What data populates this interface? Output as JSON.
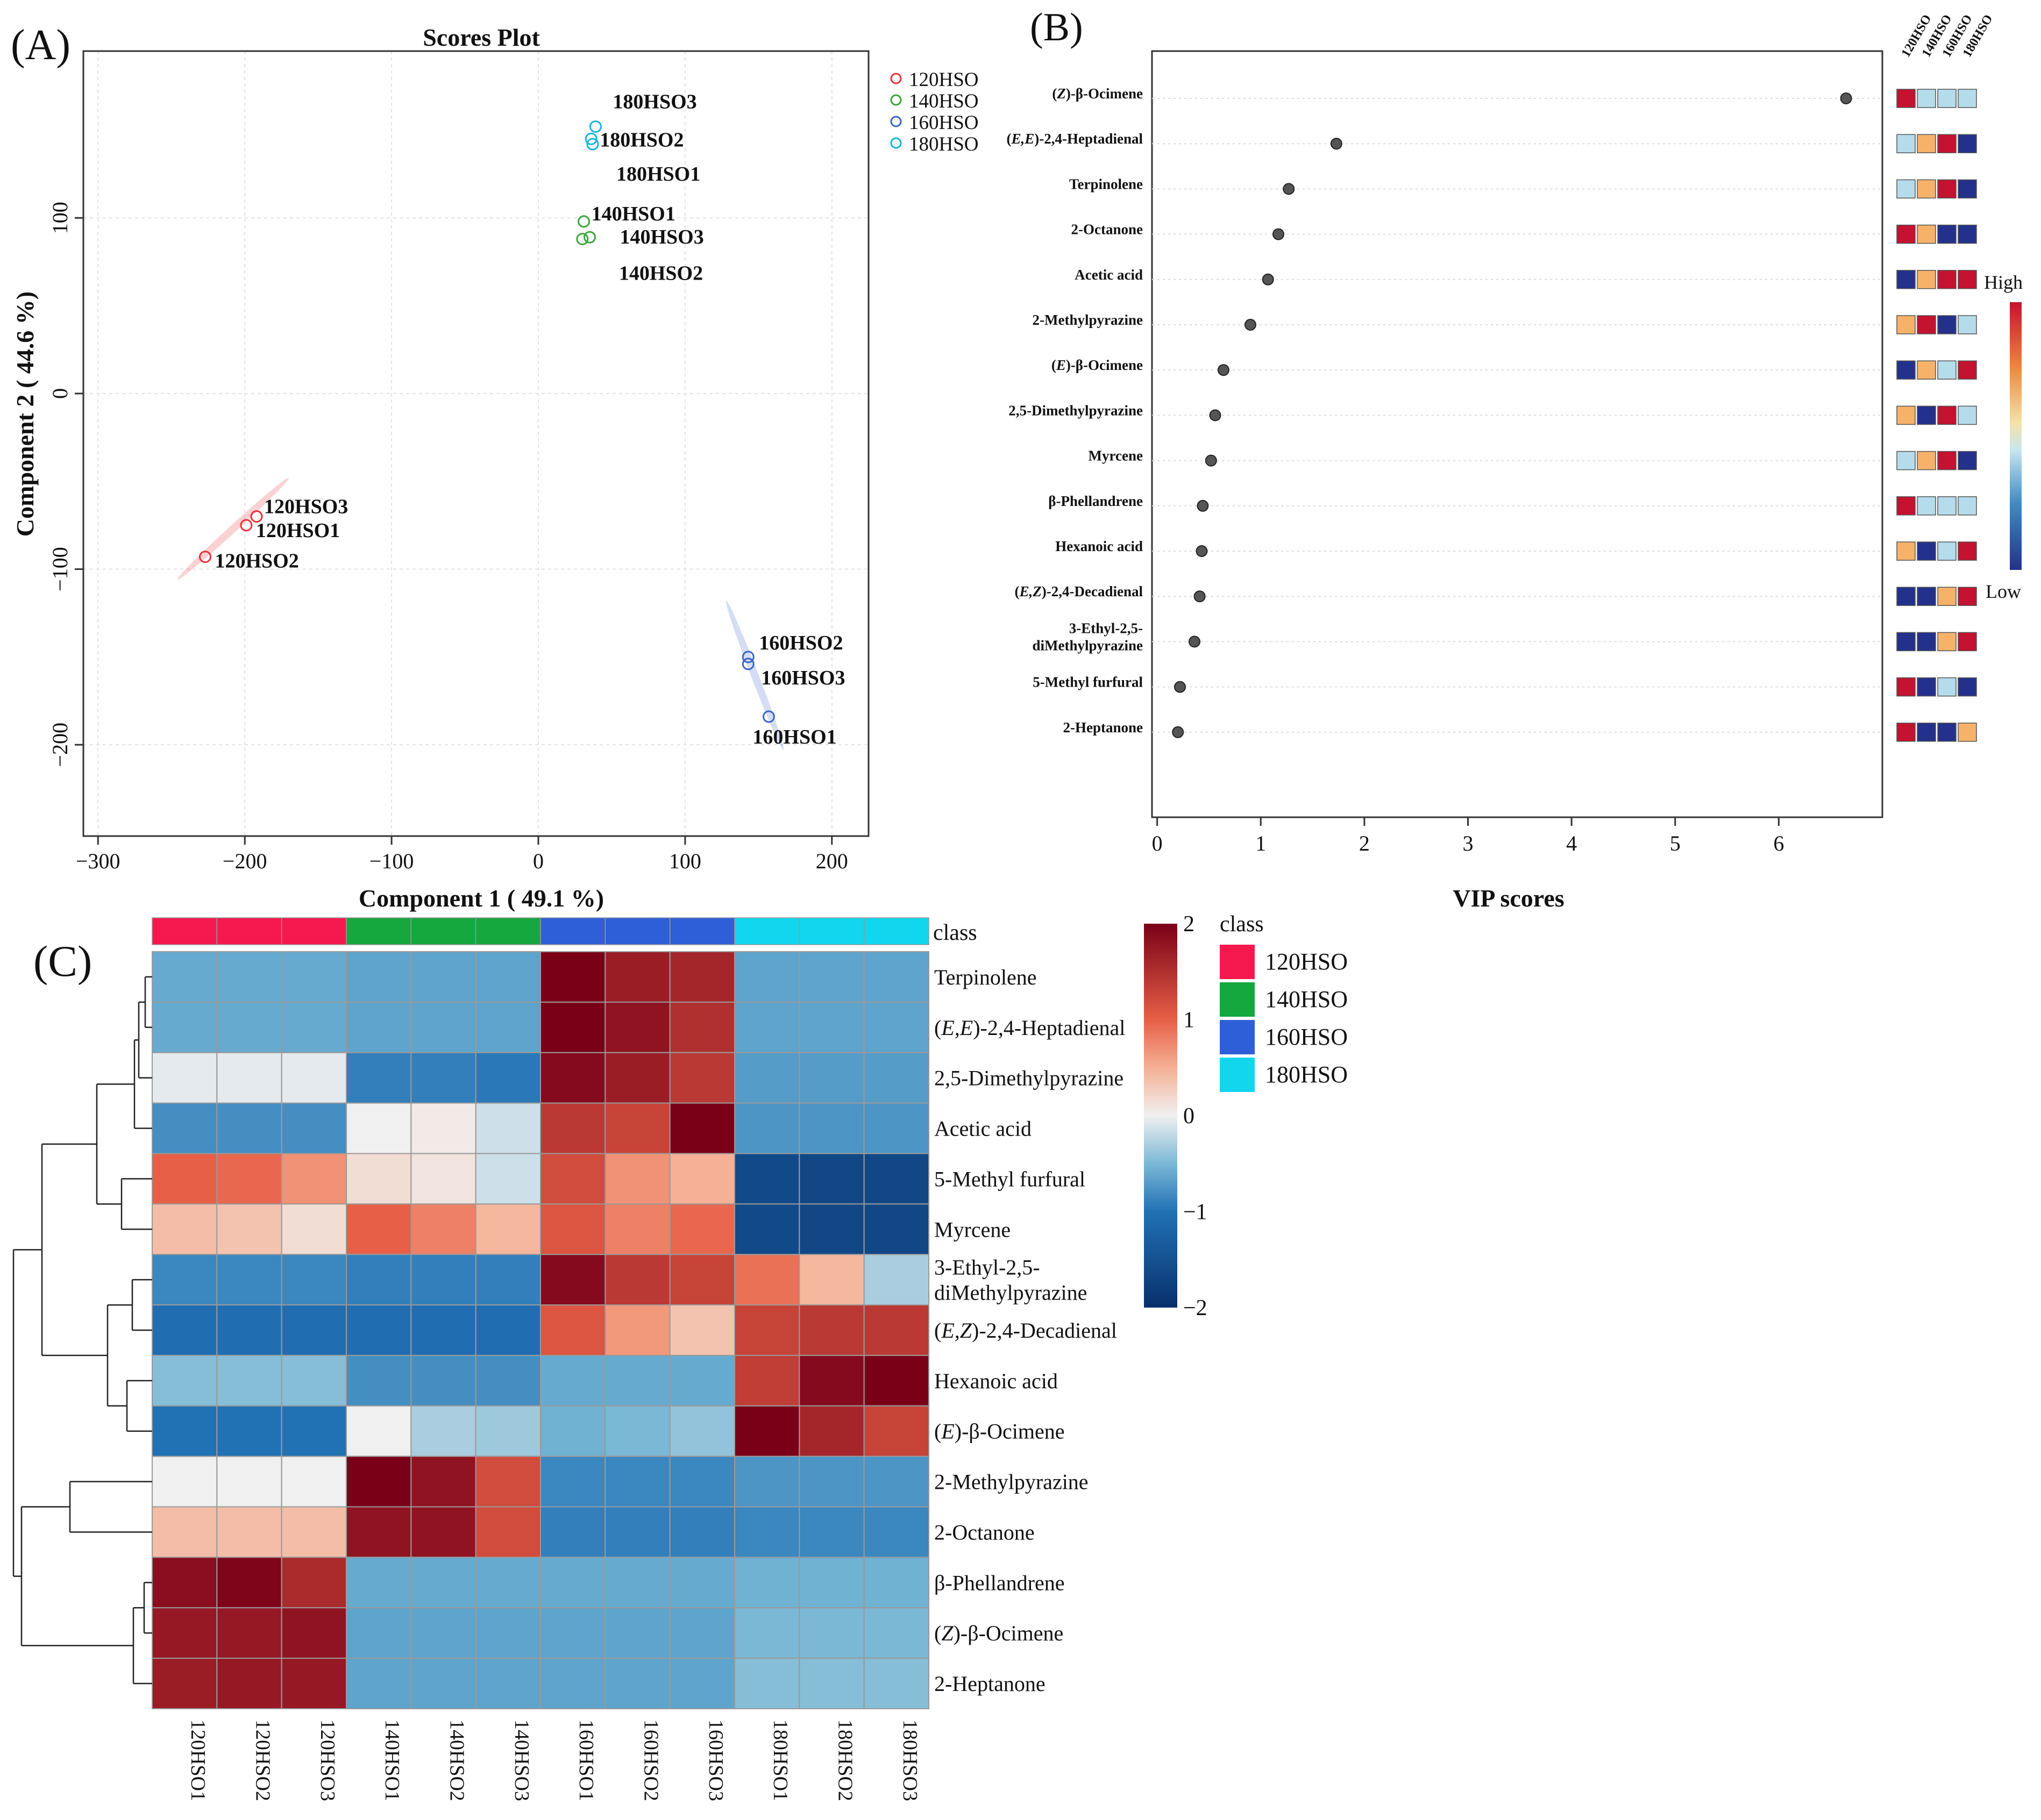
{
  "chart_data": [
    {
      "panel_label": "(A)",
      "type": "scatter",
      "title": "Scores Plot",
      "xlabel": "Component 1 ( 49.1 %)",
      "ylabel": "Component 2 ( 44.6 %)",
      "xlim": [
        -310,
        225
      ],
      "ylim": [
        -252,
        195
      ],
      "xticks": [
        -300,
        -200,
        -100,
        0,
        100,
        200
      ],
      "yticks": [
        100,
        0,
        -100,
        -200
      ],
      "tick_labels": {
        "x": [
          "−300",
          "−200",
          "−100",
          "0",
          "100",
          "200"
        ],
        "y": [
          "100",
          "0",
          "−100",
          "−200"
        ]
      },
      "grid": true,
      "legend": [
        {
          "label": "120HSO",
          "color": "#e8323c"
        },
        {
          "label": "140HSO",
          "color": "#3aa53a"
        },
        {
          "label": "160HSO",
          "color": "#3b64c8"
        },
        {
          "label": "180HSO",
          "color": "#17b4d8"
        }
      ],
      "series": [
        {
          "name": "120HSO",
          "color": "#e8323c",
          "points": [
            {
              "label": "120HSO1",
              "x": -199,
              "y": -75
            },
            {
              "label": "120HSO2",
              "x": -227,
              "y": -93
            },
            {
              "label": "120HSO3",
              "x": -192,
              "y": -70
            }
          ]
        },
        {
          "name": "140HSO",
          "color": "#3aa53a",
          "points": [
            {
              "label": "140HSO1",
              "x": 31,
              "y": 98
            },
            {
              "label": "140HSO2",
              "x": 30,
              "y": 88
            },
            {
              "label": "140HSO3",
              "x": 35,
              "y": 89
            }
          ]
        },
        {
          "name": "160HSO",
          "color": "#3b64c8",
          "points": [
            {
              "label": "160HSO1",
              "x": 157,
              "y": -184
            },
            {
              "label": "160HSO2",
              "x": 143,
              "y": -150
            },
            {
              "label": "160HSO3",
              "x": 143,
              "y": -154
            }
          ]
        },
        {
          "name": "180HSO",
          "color": "#17b4d8",
          "points": [
            {
              "label": "180HSO1",
              "x": 37,
              "y": 142
            },
            {
              "label": "180HSO2",
              "x": 36,
              "y": 145
            },
            {
              "label": "180HSO3",
              "x": 39,
              "y": 152
            }
          ]
        }
      ],
      "ellipses": [
        {
          "group": "120HSO",
          "color": "#e8323c",
          "x1": -246,
          "y1": -106,
          "x2": -170,
          "y2": -48
        },
        {
          "group": "160HSO",
          "color": "#3b64c8",
          "x1": 128,
          "y1": -118,
          "x2": 167,
          "y2": -203
        }
      ]
    },
    {
      "panel_label": "(B)",
      "type": "dot",
      "xlabel": "VIP scores",
      "xlim": [
        -0.05,
        7
      ],
      "xticks": [
        0,
        1,
        2,
        3,
        4,
        5,
        6
      ],
      "compound_labels": [
        {
          "segments": [
            {
              "t": "("
            },
            {
              "t": "Z",
              "i": true
            },
            {
              "t": ")-β-Ocimene"
            }
          ]
        },
        {
          "segments": [
            {
              "t": "("
            },
            {
              "t": "E,E",
              "i": true
            },
            {
              "t": ")-2,4-Heptadienal"
            }
          ]
        },
        {
          "segments": [
            {
              "t": "Terpinolene"
            }
          ]
        },
        {
          "segments": [
            {
              "t": "2-Octanone"
            }
          ]
        },
        {
          "segments": [
            {
              "t": "Acetic acid"
            }
          ]
        },
        {
          "segments": [
            {
              "t": "2-Methylpyrazine"
            }
          ]
        },
        {
          "segments": [
            {
              "t": "("
            },
            {
              "t": "E",
              "i": true
            },
            {
              "t": ")-β-Ocimene"
            }
          ]
        },
        {
          "segments": [
            {
              "t": "2,5-Dimethylpyrazine"
            }
          ]
        },
        {
          "segments": [
            {
              "t": "Myrcene"
            }
          ]
        },
        {
          "segments": [
            {
              "t": "β-Phellandrene"
            }
          ]
        },
        {
          "segments": [
            {
              "t": "Hexanoic acid"
            }
          ]
        },
        {
          "segments": [
            {
              "t": "("
            },
            {
              "t": "E,Z",
              "i": true
            },
            {
              "t": ")-2,4-Decadienal"
            }
          ]
        },
        {
          "segments": [
            {
              "t": "3-Ethyl-2,5-\ndiMethylpyrazine"
            }
          ]
        },
        {
          "segments": [
            {
              "t": "5-Methyl furfural"
            }
          ]
        },
        {
          "segments": [
            {
              "t": "2-Heptanone"
            }
          ]
        }
      ],
      "values": [
        6.65,
        1.73,
        1.27,
        1.17,
        1.07,
        0.9,
        0.64,
        0.56,
        0.52,
        0.44,
        0.43,
        0.41,
        0.36,
        0.22,
        0.2
      ],
      "group_headers": [
        "120HSO",
        "140HSO",
        "160HSO",
        "180HSO"
      ],
      "group_levels": [
        [
          "red",
          "lightblue",
          "lightblue",
          "lightblue"
        ],
        [
          "lightblue",
          "orange",
          "red",
          "darkblue"
        ],
        [
          "lightblue",
          "orange",
          "red",
          "darkblue"
        ],
        [
          "red",
          "orange",
          "darkblue",
          "darkblue"
        ],
        [
          "darkblue",
          "orange",
          "red",
          "red"
        ],
        [
          "orange",
          "red",
          "darkblue",
          "lightblue"
        ],
        [
          "darkblue",
          "orange",
          "lightblue",
          "red"
        ],
        [
          "orange",
          "darkblue",
          "red",
          "lightblue"
        ],
        [
          "lightblue",
          "orange",
          "red",
          "darkblue"
        ],
        [
          "red",
          "lightblue",
          "lightblue",
          "lightblue"
        ],
        [
          "orange",
          "darkblue",
          "lightblue",
          "red"
        ],
        [
          "darkblue",
          "darkblue",
          "orange",
          "red"
        ],
        [
          "darkblue",
          "darkblue",
          "orange",
          "red"
        ],
        [
          "red",
          "darkblue",
          "lightblue",
          "darkblue"
        ],
        [
          "red",
          "darkblue",
          "darkblue",
          "orange"
        ]
      ],
      "level_colors": {
        "red": "#c41230",
        "orange": "#f7b26a",
        "lightblue": "#b5dceb",
        "darkblue": "#23318c"
      },
      "scale_labels": {
        "high": "High",
        "low": "Low"
      }
    },
    {
      "panel_label": "(C)",
      "type": "heatmap",
      "columns": [
        "120HSO1",
        "120HSO2",
        "120HSO3",
        "140HSO1",
        "140HSO2",
        "140HSO3",
        "160HSO1",
        "160HSO2",
        "160HSO3",
        "180HSO1",
        "180HSO2",
        "180HSO3"
      ],
      "column_classes": [
        "120HSO",
        "120HSO",
        "120HSO",
        "140HSO",
        "140HSO",
        "140HSO",
        "160HSO",
        "160HSO",
        "160HSO",
        "180HSO",
        "180HSO",
        "180HSO"
      ],
      "class_bar_label": "class",
      "class_legend_title": "class",
      "class_colors": {
        "120HSO": "#f5184e",
        "140HSO": "#14a83e",
        "160HSO": "#2e5fd8",
        "180HSO": "#12d6ee"
      },
      "rows": [
        {
          "segments": [
            {
              "t": "Terpinolene"
            }
          ]
        },
        {
          "segments": [
            {
              "t": "("
            },
            {
              "t": "E,E",
              "i": true
            },
            {
              "t": ")-2,4-Heptadienal"
            }
          ]
        },
        {
          "segments": [
            {
              "t": "2,5-Dimethylpyrazine"
            }
          ]
        },
        {
          "segments": [
            {
              "t": "Acetic acid"
            }
          ]
        },
        {
          "segments": [
            {
              "t": "5-Methyl furfural"
            }
          ]
        },
        {
          "segments": [
            {
              "t": "Myrcene"
            }
          ]
        },
        {
          "segments": [
            {
              "t": "3-Ethyl-2,5-\ndiMethylpyrazine"
            }
          ]
        },
        {
          "segments": [
            {
              "t": "("
            },
            {
              "t": "E,Z",
              "i": true
            },
            {
              "t": ")-2,4-Decadienal"
            }
          ]
        },
        {
          "segments": [
            {
              "t": "Hexanoic acid"
            }
          ]
        },
        {
          "segments": [
            {
              "t": "("
            },
            {
              "t": "E",
              "i": true
            },
            {
              "t": ")-β-Ocimene"
            }
          ]
        },
        {
          "segments": [
            {
              "t": "2-Methylpyrazine"
            }
          ]
        },
        {
          "segments": [
            {
              "t": "2-Octanone"
            }
          ]
        },
        {
          "segments": [
            {
              "t": "β-Phellandrene"
            }
          ]
        },
        {
          "segments": [
            {
              "t": "("
            },
            {
              "t": "Z",
              "i": true
            },
            {
              "t": ")-β-Ocimene"
            }
          ]
        },
        {
          "segments": [
            {
              "t": "2-Heptanone"
            }
          ]
        }
      ],
      "values": [
        [
          -0.6,
          -0.6,
          -0.6,
          -0.65,
          -0.65,
          -0.65,
          2.0,
          1.7,
          1.6,
          -0.65,
          -0.65,
          -0.65
        ],
        [
          -0.6,
          -0.6,
          -0.6,
          -0.65,
          -0.65,
          -0.65,
          2.0,
          1.8,
          1.5,
          -0.65,
          -0.65,
          -0.65
        ],
        [
          -0.05,
          -0.05,
          -0.05,
          -0.9,
          -0.9,
          -0.95,
          1.9,
          1.7,
          1.4,
          -0.7,
          -0.7,
          -0.7
        ],
        [
          -0.8,
          -0.8,
          -0.8,
          0.0,
          0.05,
          -0.15,
          1.4,
          1.3,
          2.0,
          -0.75,
          -0.75,
          -0.75
        ],
        [
          1.0,
          0.95,
          0.7,
          0.15,
          0.1,
          -0.15,
          1.2,
          0.7,
          0.5,
          -1.6,
          -1.65,
          -1.65
        ],
        [
          0.4,
          0.35,
          0.15,
          1.0,
          0.8,
          0.45,
          1.1,
          0.8,
          0.95,
          -1.6,
          -1.65,
          -1.65
        ],
        [
          -0.85,
          -0.85,
          -0.85,
          -0.9,
          -0.9,
          -0.9,
          1.9,
          1.4,
          1.3,
          0.9,
          0.45,
          -0.3
        ],
        [
          -1.05,
          -1.05,
          -1.05,
          -1.05,
          -1.05,
          -1.05,
          1.1,
          0.65,
          0.35,
          1.3,
          1.4,
          1.4
        ],
        [
          -0.45,
          -0.45,
          -0.45,
          -0.8,
          -0.8,
          -0.8,
          -0.6,
          -0.6,
          -0.6,
          1.35,
          1.9,
          2.0
        ],
        [
          -1.0,
          -1.0,
          -1.0,
          0.0,
          -0.3,
          -0.35,
          -0.55,
          -0.5,
          -0.4,
          2.0,
          1.6,
          1.3
        ],
        [
          0.0,
          0.0,
          0.0,
          2.0,
          1.8,
          1.2,
          -0.85,
          -0.85,
          -0.85,
          -0.75,
          -0.75,
          -0.75
        ],
        [
          0.4,
          0.4,
          0.4,
          1.8,
          1.8,
          1.2,
          -0.9,
          -0.9,
          -0.9,
          -0.85,
          -0.85,
          -0.85
        ],
        [
          1.85,
          1.95,
          1.55,
          -0.6,
          -0.6,
          -0.6,
          -0.6,
          -0.6,
          -0.6,
          -0.55,
          -0.55,
          -0.55
        ],
        [
          1.75,
          1.75,
          1.8,
          -0.65,
          -0.65,
          -0.65,
          -0.65,
          -0.65,
          -0.65,
          -0.5,
          -0.5,
          -0.5
        ],
        [
          1.7,
          1.75,
          1.75,
          -0.65,
          -0.65,
          -0.65,
          -0.65,
          -0.65,
          -0.65,
          -0.45,
          -0.45,
          -0.45
        ]
      ],
      "color_range": [
        -2,
        2
      ],
      "colorbar_ticks": [
        2,
        1,
        0,
        -1,
        -2
      ],
      "colorbar_tick_labels": [
        "2",
        "1",
        "0",
        "−1",
        "−2"
      ]
    }
  ]
}
